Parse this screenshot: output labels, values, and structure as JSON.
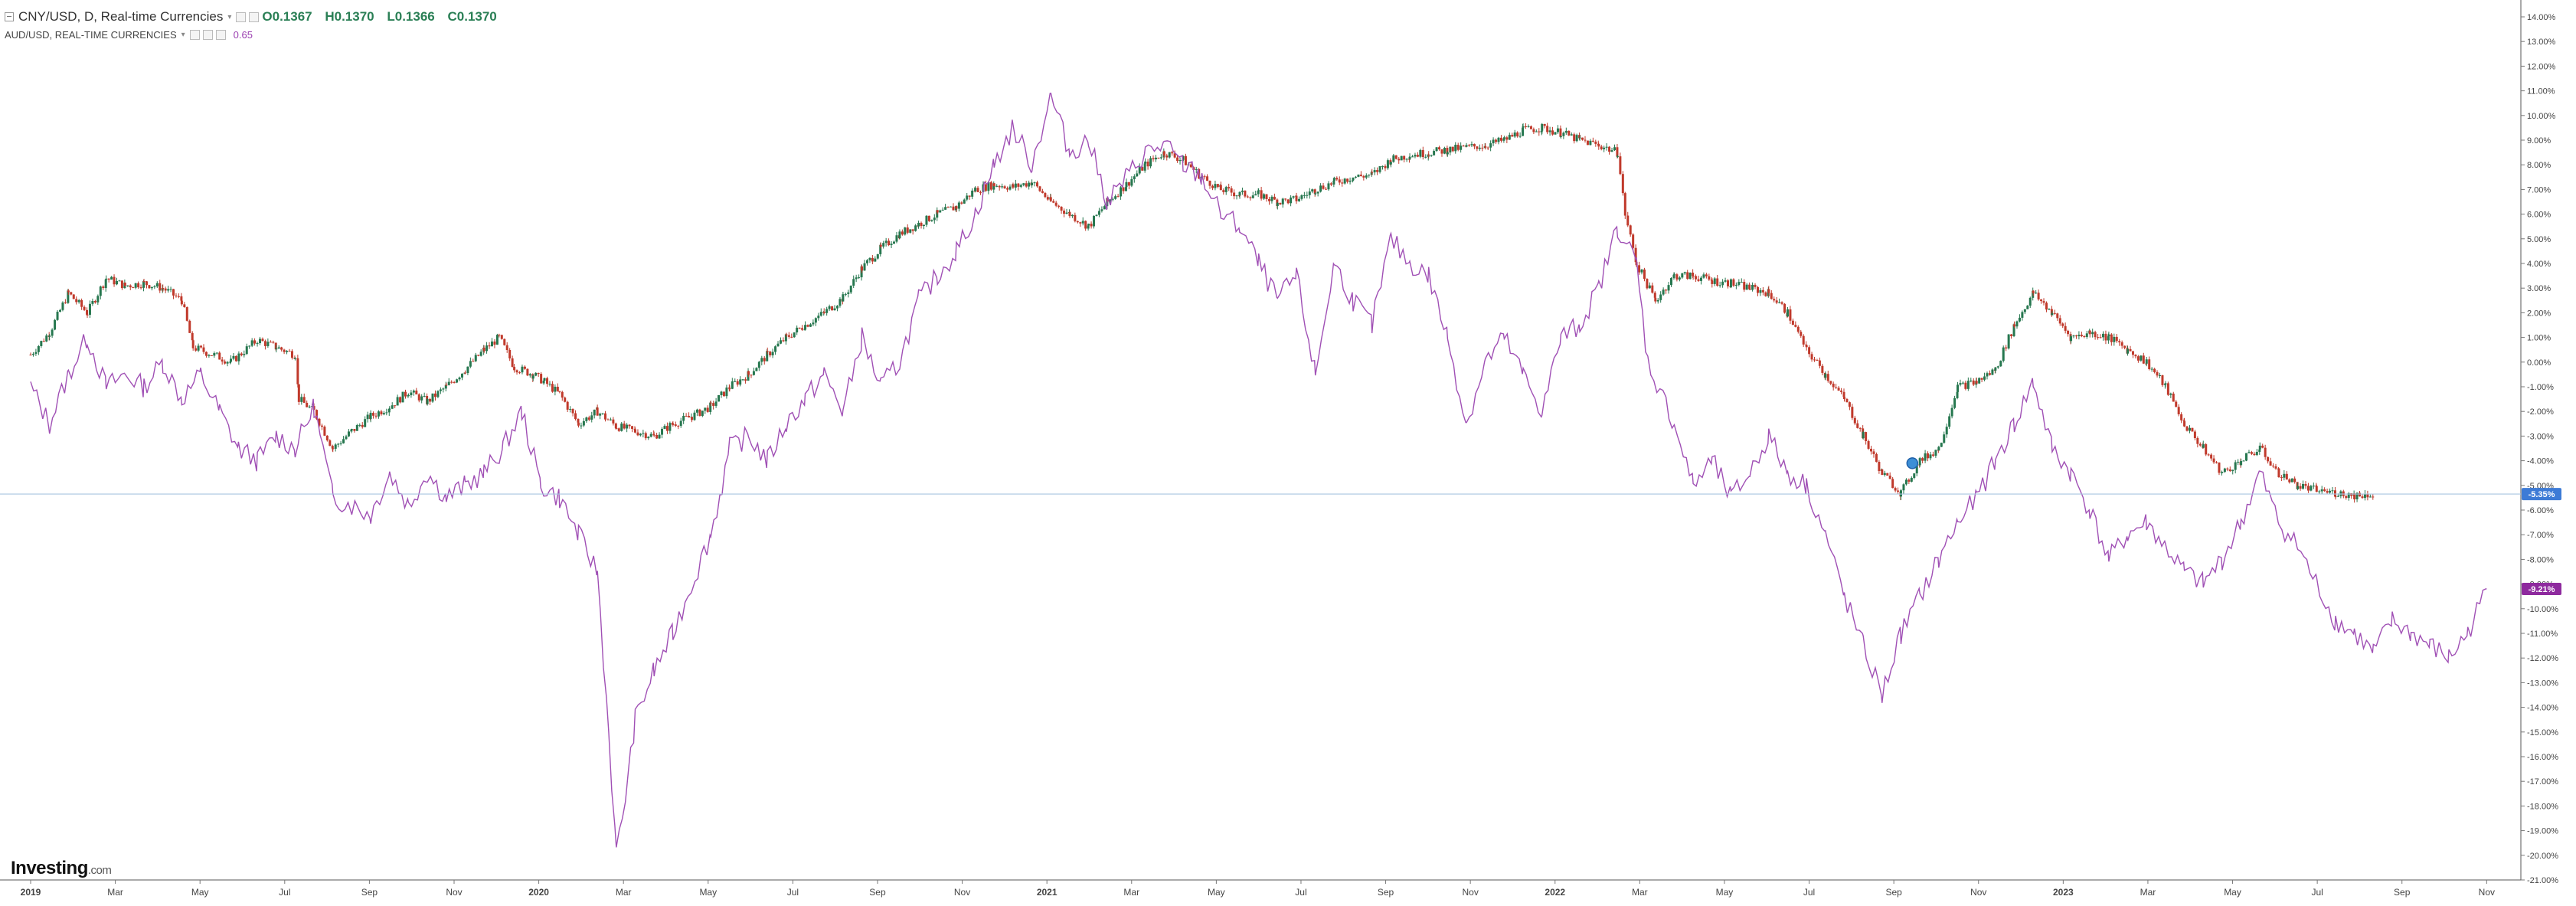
{
  "legend": {
    "main_title": "CNY/USD, D, Real-time Currencies",
    "ohlc": {
      "open_label": "O",
      "open": "0.1367",
      "high_label": "H",
      "high": "0.1370",
      "low_label": "L",
      "low": "0.1366",
      "close_label": "C",
      "close": "0.1370"
    },
    "compare_title": "AUD/USD, REAL-TIME CURRENCIES",
    "compare_value": "0.65"
  },
  "brand": {
    "name": "Investing",
    "suffix": ".com"
  },
  "colors": {
    "up": "#26774f",
    "down": "#c0392b",
    "compare_line": "#a050b5",
    "last_price_line": "#a8c4e0",
    "last_price_badge": "#3d7bd6",
    "compare_badge": "#8e2a9e",
    "axis_text": "#444444"
  },
  "chart_data": {
    "type": "line",
    "title": "CNY/USD, D, Real-time Currencies",
    "yaxis": {
      "unit": "percent",
      "min": -21,
      "max": 14,
      "step": 1,
      "side": "right"
    },
    "x_ticks": [
      "2019",
      "Mar",
      "May",
      "Jul",
      "Sep",
      "Nov",
      "2020",
      "Mar",
      "May",
      "Jul",
      "Sep",
      "Nov",
      "2021",
      "Mar",
      "May",
      "Jul",
      "Sep",
      "Nov",
      "2022",
      "Mar",
      "May",
      "Jul",
      "Sep",
      "Nov",
      "2023",
      "Mar",
      "May",
      "Jul",
      "Sep",
      "Nov"
    ],
    "series": [
      {
        "name": "CNY/USD",
        "style": "candlestick",
        "points": [
          [
            0,
            0.3
          ],
          [
            0.5,
            1.2
          ],
          [
            1,
            2.8
          ],
          [
            1.5,
            2.0
          ],
          [
            2,
            3.4
          ],
          [
            2.5,
            3.1
          ],
          [
            3,
            3.2
          ],
          [
            3.5,
            3.0
          ],
          [
            4,
            2.5
          ],
          [
            4.3,
            0.6
          ],
          [
            5,
            0.2
          ],
          [
            5.3,
            0.0
          ],
          [
            6,
            0.9
          ],
          [
            6.5,
            0.6
          ],
          [
            7,
            0.3
          ],
          [
            7.1,
            -1.5
          ],
          [
            7.5,
            -2.0
          ],
          [
            8,
            -3.5
          ],
          [
            8.5,
            -2.8
          ],
          [
            9,
            -2.2
          ],
          [
            9.5,
            -1.8
          ],
          [
            10,
            -1.2
          ],
          [
            10.5,
            -1.6
          ],
          [
            11,
            -1.0
          ],
          [
            11.5,
            -0.3
          ],
          [
            12,
            0.5
          ],
          [
            12.4,
            1.0
          ],
          [
            12.8,
            -0.2
          ],
          [
            13.3,
            -0.5
          ],
          [
            13.6,
            -0.8
          ],
          [
            14,
            -1.3
          ],
          [
            14.5,
            -2.5
          ],
          [
            15,
            -2.0
          ],
          [
            15.5,
            -2.6
          ],
          [
            16,
            -2.8
          ],
          [
            16.5,
            -3.0
          ],
          [
            17,
            -2.5
          ],
          [
            17.5,
            -2.2
          ],
          [
            18,
            -1.8
          ],
          [
            18.5,
            -1.0
          ],
          [
            19,
            -0.5
          ],
          [
            19.5,
            0.3
          ],
          [
            20,
            1.0
          ],
          [
            20.5,
            1.5
          ],
          [
            21,
            2.0
          ],
          [
            21.5,
            2.6
          ],
          [
            22,
            3.8
          ],
          [
            22.5,
            4.6
          ],
          [
            23,
            5.2
          ],
          [
            23.5,
            5.6
          ],
          [
            24,
            6.0
          ],
          [
            24.5,
            6.3
          ],
          [
            25,
            7.0
          ],
          [
            25.5,
            7.2
          ],
          [
            26,
            7.1
          ],
          [
            26.5,
            7.3
          ],
          [
            27,
            6.5
          ],
          [
            27.5,
            6.0
          ],
          [
            28,
            5.5
          ],
          [
            28.5,
            6.5
          ],
          [
            29,
            7.2
          ],
          [
            29.5,
            8.0
          ],
          [
            30,
            8.5
          ],
          [
            30.5,
            8.2
          ],
          [
            31,
            7.5
          ],
          [
            31.5,
            7.0
          ],
          [
            32,
            6.8
          ],
          [
            32.5,
            6.8
          ],
          [
            33,
            6.5
          ],
          [
            33.5,
            6.6
          ],
          [
            34,
            7.0
          ],
          [
            34.5,
            7.3
          ],
          [
            35,
            7.5
          ],
          [
            35.5,
            7.6
          ],
          [
            36,
            8.2
          ],
          [
            36.5,
            8.4
          ],
          [
            37,
            8.5
          ],
          [
            37.5,
            8.6
          ],
          [
            38,
            8.7
          ],
          [
            38.5,
            8.8
          ],
          [
            39,
            9.0
          ],
          [
            39.5,
            9.4
          ],
          [
            40,
            9.5
          ],
          [
            40.5,
            9.3
          ],
          [
            41,
            9.0
          ],
          [
            41.5,
            8.8
          ],
          [
            42,
            8.5
          ],
          [
            42.2,
            6.0
          ],
          [
            42.5,
            4.0
          ],
          [
            43,
            2.5
          ],
          [
            43.5,
            3.5
          ],
          [
            44,
            3.5
          ],
          [
            44.5,
            3.3
          ],
          [
            45,
            3.2
          ],
          [
            45.5,
            3.0
          ],
          [
            46,
            2.8
          ],
          [
            46.5,
            2.0
          ],
          [
            47,
            0.5
          ],
          [
            47.5,
            -0.5
          ],
          [
            48,
            -1.5
          ],
          [
            48.5,
            -3.0
          ],
          [
            49,
            -4.5
          ],
          [
            49.5,
            -5.3
          ],
          [
            50,
            -4.0
          ],
          [
            50.5,
            -3.5
          ],
          [
            51,
            -1.0
          ],
          [
            51.5,
            -0.8
          ],
          [
            52,
            -0.3
          ],
          [
            52.5,
            1.5
          ],
          [
            53,
            2.8
          ],
          [
            53.5,
            2.0
          ],
          [
            54,
            1.0
          ],
          [
            54.5,
            1.2
          ],
          [
            55,
            1.0
          ],
          [
            55.5,
            0.5
          ],
          [
            56,
            0.0
          ],
          [
            56.5,
            -1.0
          ],
          [
            57,
            -2.5
          ],
          [
            57.5,
            -3.5
          ],
          [
            58,
            -4.5
          ],
          [
            58.5,
            -4.0
          ],
          [
            59,
            -3.5
          ],
          [
            59.5,
            -4.5
          ],
          [
            60,
            -5.0
          ],
          [
            60.5,
            -5.2
          ],
          [
            61,
            -5.3
          ],
          [
            61.5,
            -5.4
          ],
          [
            62,
            -5.35
          ]
        ],
        "last_value_label": "-5.35%"
      },
      {
        "name": "AUD/USD",
        "style": "line",
        "points": [
          [
            0,
            -1.0
          ],
          [
            0.5,
            -2.5
          ],
          [
            1,
            -0.5
          ],
          [
            1.5,
            1.0
          ],
          [
            2,
            -1.0
          ],
          [
            2.5,
            -0.5
          ],
          [
            3,
            -1.0
          ],
          [
            3.5,
            0.0
          ],
          [
            4,
            -1.5
          ],
          [
            4.5,
            -0.5
          ],
          [
            5,
            -2.0
          ],
          [
            5.5,
            -3.5
          ],
          [
            6,
            -4.0
          ],
          [
            6.5,
            -3.0
          ],
          [
            7,
            -3.5
          ],
          [
            7.5,
            -1.8
          ],
          [
            8,
            -5.5
          ],
          [
            8.5,
            -5.8
          ],
          [
            9,
            -6.2
          ],
          [
            9.5,
            -4.5
          ],
          [
            10,
            -5.8
          ],
          [
            10.5,
            -4.5
          ],
          [
            11,
            -5.5
          ],
          [
            11.5,
            -5.0
          ],
          [
            12,
            -4.5
          ],
          [
            12.5,
            -3.5
          ],
          [
            13,
            -2.0
          ],
          [
            13.5,
            -5.0
          ],
          [
            14,
            -5.5
          ],
          [
            14.5,
            -7.0
          ],
          [
            15,
            -8.5
          ],
          [
            15.3,
            -15.0
          ],
          [
            15.5,
            -20.0
          ],
          [
            15.8,
            -17.0
          ],
          [
            16,
            -14.5
          ],
          [
            16.5,
            -12.5
          ],
          [
            17,
            -11.0
          ],
          [
            17.5,
            -9.0
          ],
          [
            18,
            -7.0
          ],
          [
            18.3,
            -5.0
          ],
          [
            18.5,
            -3.5
          ],
          [
            19,
            -3.0
          ],
          [
            19.5,
            -4.0
          ],
          [
            20,
            -2.5
          ],
          [
            20.5,
            -1.5
          ],
          [
            21,
            -0.5
          ],
          [
            21.5,
            -2.0
          ],
          [
            22,
            1.0
          ],
          [
            22.5,
            -1.0
          ],
          [
            23,
            0.0
          ],
          [
            23.5,
            2.5
          ],
          [
            24,
            3.5
          ],
          [
            24.5,
            4.5
          ],
          [
            25,
            6.0
          ],
          [
            25.5,
            8.0
          ],
          [
            26,
            9.5
          ],
          [
            26.5,
            8.0
          ],
          [
            27,
            10.8
          ],
          [
            27.5,
            8.5
          ],
          [
            28,
            9.0
          ],
          [
            28.5,
            6.5
          ],
          [
            29,
            7.5
          ],
          [
            29.5,
            8.5
          ],
          [
            30,
            8.8
          ],
          [
            30.5,
            8.0
          ],
          [
            31,
            7.5
          ],
          [
            31.5,
            6.0
          ],
          [
            32,
            5.5
          ],
          [
            32.5,
            4.0
          ],
          [
            33,
            2.5
          ],
          [
            33.5,
            3.5
          ],
          [
            34,
            -0.5
          ],
          [
            34.5,
            4.0
          ],
          [
            35,
            2.5
          ],
          [
            35.5,
            1.5
          ],
          [
            36,
            5.0
          ],
          [
            36.5,
            4.0
          ],
          [
            37,
            3.5
          ],
          [
            37.5,
            1.0
          ],
          [
            38,
            -2.5
          ],
          [
            38.5,
            0.0
          ],
          [
            39,
            1.0
          ],
          [
            39.5,
            -0.5
          ],
          [
            40,
            -2.0
          ],
          [
            40.5,
            1.0
          ],
          [
            41,
            1.5
          ],
          [
            41.5,
            3.0
          ],
          [
            42,
            5.5
          ],
          [
            42.5,
            4.0
          ],
          [
            42.8,
            0.0
          ],
          [
            43.5,
            -2.5
          ],
          [
            44,
            -5.0
          ],
          [
            44.5,
            -4.0
          ],
          [
            45,
            -5.5
          ],
          [
            45.5,
            -4.5
          ],
          [
            46,
            -3.0
          ],
          [
            46.5,
            -4.5
          ],
          [
            47,
            -5.0
          ],
          [
            47.5,
            -7.0
          ],
          [
            48,
            -9.5
          ],
          [
            48.5,
            -11.5
          ],
          [
            49,
            -13.5
          ],
          [
            49.5,
            -11.0
          ],
          [
            50,
            -9.5
          ],
          [
            50.5,
            -8.0
          ],
          [
            51,
            -6.5
          ],
          [
            51.5,
            -5.5
          ],
          [
            52,
            -4.0
          ],
          [
            52.5,
            -2.5
          ],
          [
            53,
            -0.8
          ],
          [
            53.5,
            -3.5
          ],
          [
            54,
            -4.5
          ],
          [
            54.5,
            -6.0
          ],
          [
            55,
            -8.0
          ],
          [
            55.5,
            -7.0
          ],
          [
            56,
            -6.5
          ],
          [
            56.5,
            -7.5
          ],
          [
            57,
            -8.5
          ],
          [
            57.5,
            -9.0
          ],
          [
            58,
            -8.0
          ],
          [
            58.5,
            -6.5
          ],
          [
            59,
            -4.5
          ],
          [
            59.5,
            -6.5
          ],
          [
            60,
            -7.5
          ],
          [
            60.5,
            -9.0
          ],
          [
            61,
            -10.5
          ],
          [
            61.5,
            -11.0
          ],
          [
            62,
            -11.8
          ],
          [
            62.5,
            -10.5
          ],
          [
            63,
            -11.0
          ],
          [
            63.5,
            -11.5
          ],
          [
            64,
            -12.0
          ],
          [
            64.5,
            -11.0
          ],
          [
            65,
            -9.2
          ]
        ],
        "last_value_label": "-9.21%"
      }
    ],
    "annotations": [
      {
        "type": "marker",
        "label": "",
        "x_index": 49.8,
        "y": -4.1
      }
    ]
  }
}
